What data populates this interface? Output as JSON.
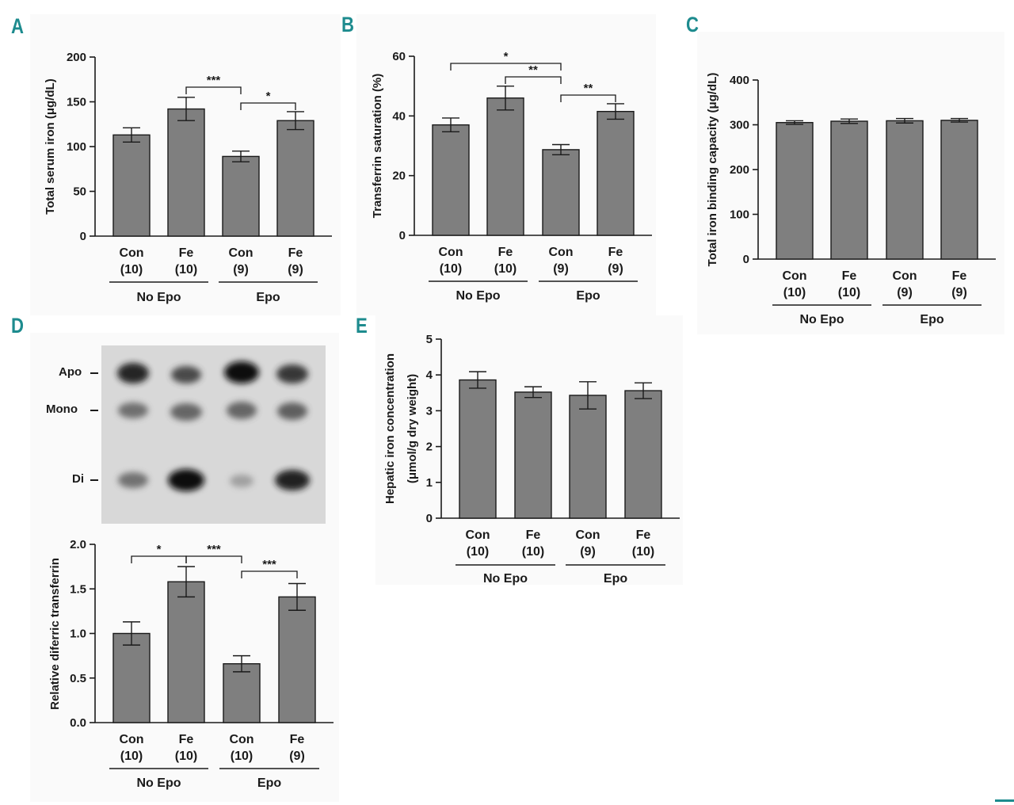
{
  "panels": {
    "A": {
      "letter": "A"
    },
    "B": {
      "letter": "B"
    },
    "C": {
      "letter": "C"
    },
    "D": {
      "letter": "D"
    },
    "E": {
      "letter": "E"
    }
  },
  "blot": {
    "labels": [
      "Apo",
      "Mono",
      "Di"
    ]
  },
  "colors": {
    "bar": "#7f7f7f",
    "bar_edge": "#1a1a1a",
    "panel_letter": "#1d8b8e",
    "panel_bg": "#fafafa"
  },
  "chart_data": [
    {
      "panel": "A",
      "type": "bar",
      "ylabel": "Total serum iron (μg/dL)",
      "ylim": [
        0,
        200
      ],
      "yticks": [
        "0",
        "50",
        "100",
        "150",
        "200"
      ],
      "categories": [
        "Con",
        "Fe",
        "Con",
        "Fe"
      ],
      "n_labels": [
        "(10)",
        "(10)",
        "(9)",
        "(9)"
      ],
      "values": [
        113,
        142,
        89,
        129
      ],
      "errors": [
        8,
        13,
        6,
        10
      ],
      "groups": [
        {
          "label": "No Epo",
          "span": [
            0,
            1
          ]
        },
        {
          "label": "Epo",
          "span": [
            2,
            3
          ]
        }
      ],
      "significance": [
        {
          "pair": [
            1,
            2
          ],
          "label": "***"
        },
        {
          "pair": [
            2,
            3
          ],
          "label": "*"
        }
      ],
      "grid": false
    },
    {
      "panel": "B",
      "type": "bar",
      "ylabel": "Transferrin saturation (%)",
      "ylim": [
        0,
        60
      ],
      "yticks": [
        "0",
        "20",
        "40",
        "60"
      ],
      "categories": [
        "Con",
        "Fe",
        "Con",
        "Fe"
      ],
      "n_labels": [
        "(10)",
        "(10)",
        "(9)",
        "(9)"
      ],
      "values": [
        37,
        46,
        28.7,
        41.5
      ],
      "errors": [
        2.3,
        4,
        1.7,
        2.6
      ],
      "groups": [
        {
          "label": "No Epo",
          "span": [
            0,
            1
          ]
        },
        {
          "label": "Epo",
          "span": [
            2,
            3
          ]
        }
      ],
      "significance": [
        {
          "pair": [
            0,
            2
          ],
          "label": "*"
        },
        {
          "pair": [
            1,
            2
          ],
          "label": "**"
        },
        {
          "pair": [
            2,
            3
          ],
          "label": "**"
        }
      ],
      "grid": false
    },
    {
      "panel": "C",
      "type": "bar",
      "ylabel": "Total iron binding capacity (μg/dL)",
      "ylim": [
        0,
        400
      ],
      "yticks": [
        "0",
        "100",
        "200",
        "300",
        "400"
      ],
      "categories": [
        "Con",
        "Fe",
        "Con",
        "Fe"
      ],
      "n_labels": [
        "(10)",
        "(10)",
        "(9)",
        "(9)"
      ],
      "values": [
        305,
        308,
        309,
        310
      ],
      "errors": [
        4,
        5,
        5,
        4
      ],
      "groups": [
        {
          "label": "No Epo",
          "span": [
            0,
            1
          ]
        },
        {
          "label": "Epo",
          "span": [
            2,
            3
          ]
        }
      ],
      "significance": [],
      "grid": false
    },
    {
      "panel": "D",
      "type": "bar",
      "ylabel": "Relative diferric transferrin",
      "ylim": [
        0,
        2.0
      ],
      "yticks": [
        "0.0",
        "0.5",
        "1.0",
        "1.5",
        "2.0"
      ],
      "categories": [
        "Con",
        "Fe",
        "Con",
        "Fe"
      ],
      "n_labels": [
        "(10)",
        "(10)",
        "(10)",
        "(9)"
      ],
      "values": [
        1.0,
        1.58,
        0.66,
        1.41
      ],
      "errors": [
        0.13,
        0.17,
        0.09,
        0.15
      ],
      "groups": [
        {
          "label": "No Epo",
          "span": [
            0,
            1
          ]
        },
        {
          "label": "Epo",
          "span": [
            2,
            3
          ]
        }
      ],
      "significance": [
        {
          "pair": [
            0,
            1
          ],
          "label": "*"
        },
        {
          "pair": [
            1,
            2
          ],
          "label": "***"
        },
        {
          "pair": [
            2,
            3
          ],
          "label": "***"
        }
      ],
      "grid": false
    },
    {
      "panel": "E",
      "type": "bar",
      "ylabel": "Hepatic iron concentration",
      "ylabel2": "(μmol/g dry weight)",
      "ylim": [
        0,
        5
      ],
      "yticks": [
        "0",
        "1",
        "2",
        "3",
        "4",
        "5"
      ],
      "categories": [
        "Con",
        "Fe",
        "Con",
        "Fe"
      ],
      "n_labels": [
        "(10)",
        "(10)",
        "(9)",
        "(10)"
      ],
      "values": [
        3.86,
        3.52,
        3.43,
        3.56
      ],
      "errors": [
        0.23,
        0.15,
        0.38,
        0.22
      ],
      "groups": [
        {
          "label": "No Epo",
          "span": [
            0,
            1
          ]
        },
        {
          "label": "Epo",
          "span": [
            2,
            3
          ]
        }
      ],
      "significance": [],
      "grid": false
    }
  ]
}
